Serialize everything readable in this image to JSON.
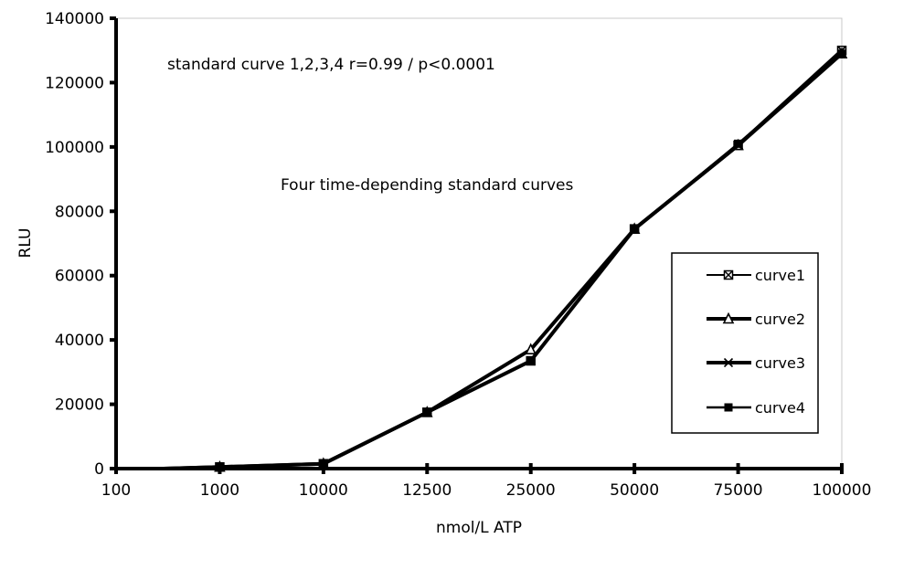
{
  "chart_data": {
    "type": "line",
    "categories": [
      "100",
      "1000",
      "10000",
      "12500",
      "25000",
      "50000",
      "75000",
      "100000"
    ],
    "xlabel": "nmol/L ATP",
    "ylabel": "RLU",
    "ylim": [
      0,
      140000
    ],
    "y_ticks": [
      "0",
      "20000",
      "40000",
      "60000",
      "80000",
      "100000",
      "120000",
      "140000"
    ],
    "y_tick_values": [
      0,
      20000,
      40000,
      60000,
      80000,
      100000,
      120000,
      140000
    ],
    "grid": false,
    "legend_position": "right",
    "annotations": [
      "standard curve 1,2,3,4 r=0.99 / p<0.0001",
      "Four time-depending standard curves"
    ],
    "series": [
      {
        "name": "curve1",
        "marker": "box-x",
        "values": [
          0,
          500,
          1500,
          17500,
          33500,
          74500,
          100500,
          130000
        ]
      },
      {
        "name": "curve2",
        "marker": "triangle",
        "values": [
          0,
          500,
          1500,
          17500,
          37000,
          74500,
          100500,
          129000
        ]
      },
      {
        "name": "curve3",
        "marker": "x",
        "values": [
          0,
          500,
          1500,
          17500,
          33500,
          74500,
          100500,
          130000
        ]
      },
      {
        "name": "curve4",
        "marker": "square",
        "values": [
          0,
          500,
          1500,
          17500,
          33500,
          74500,
          101000,
          129000
        ]
      }
    ]
  }
}
